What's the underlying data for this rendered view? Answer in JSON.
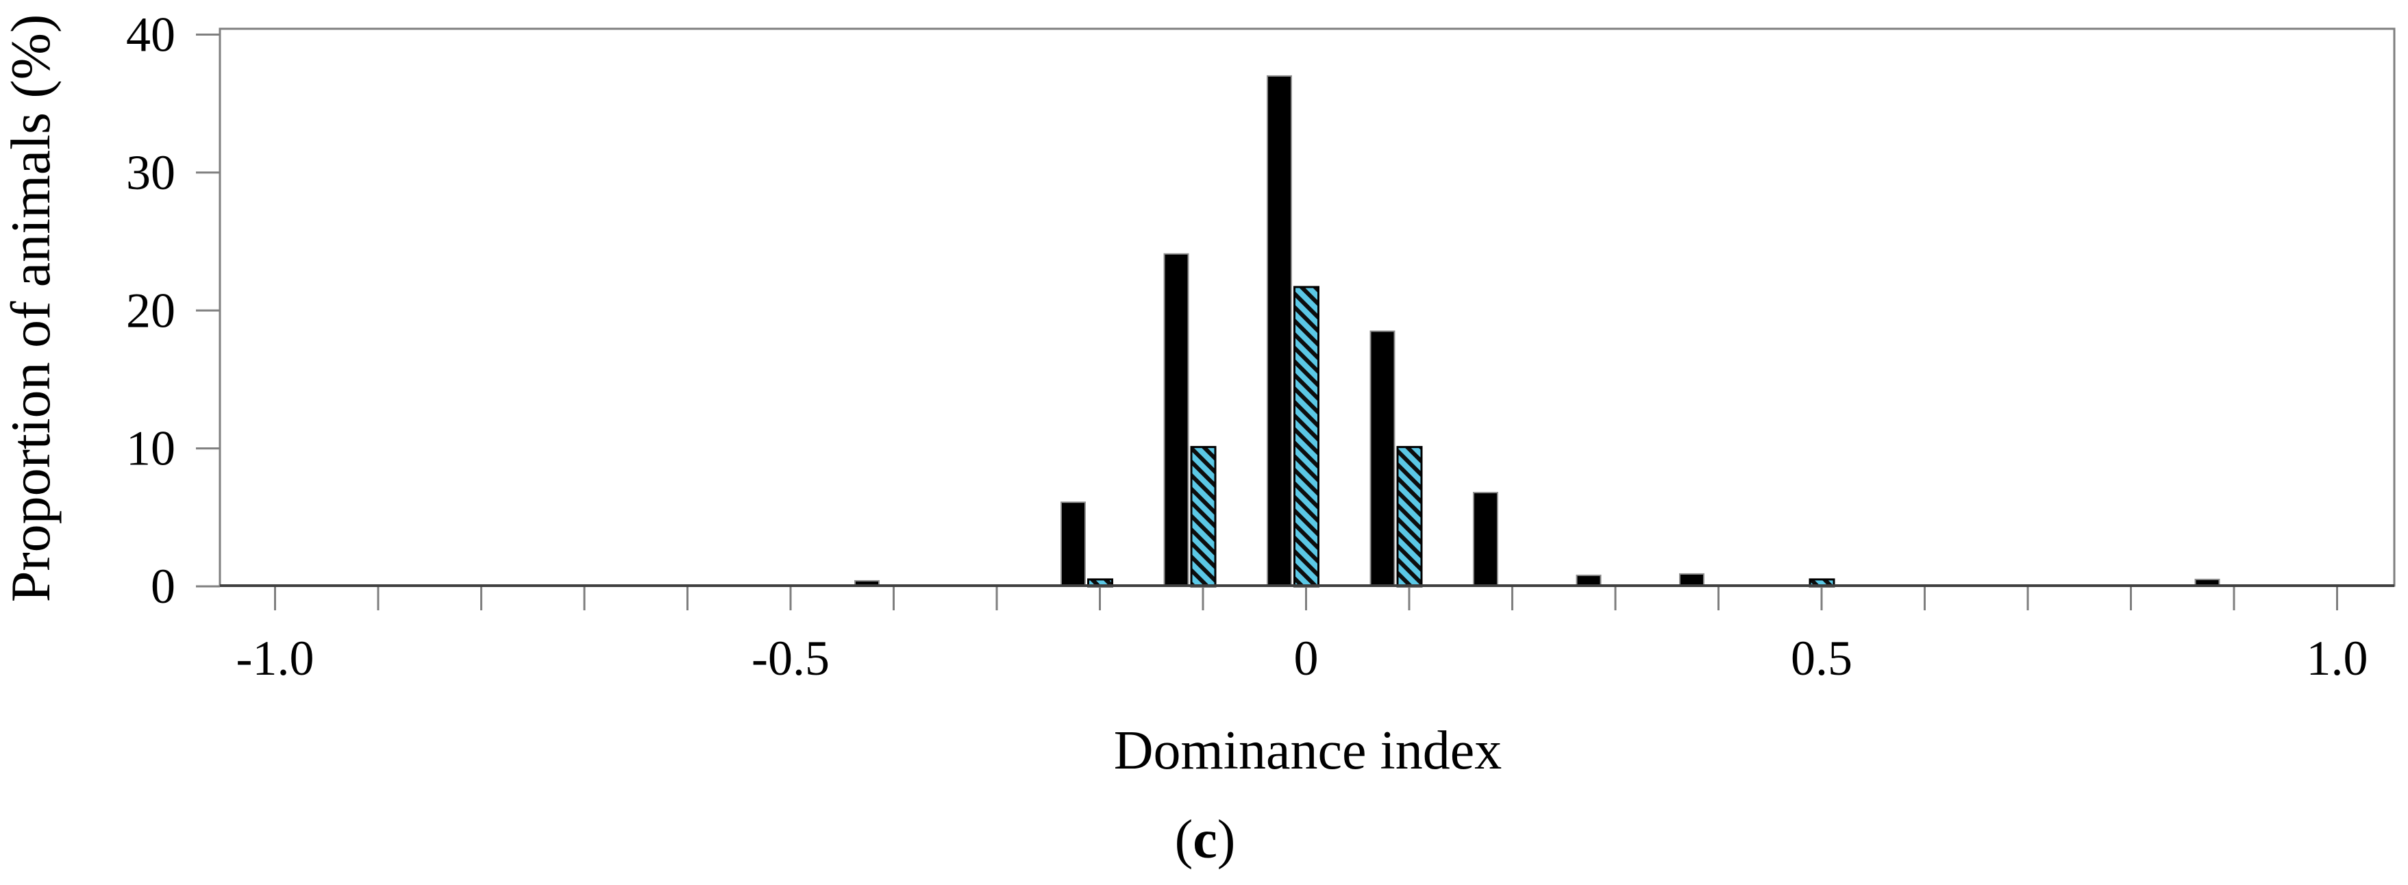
{
  "figure": {
    "caption": {
      "open": "(",
      "letter": "c",
      "close": ")"
    }
  },
  "colors": {
    "background": "#ffffff",
    "frame": "#7f7f7f",
    "axis_bottom": "#404040",
    "tick": "#7f7f7f",
    "text": "#000000",
    "bar_solid": "#000000",
    "bar_solid_outline": "#909090",
    "hatch_fill": "#5bc8e6",
    "hatch_stripe": "#0d0d0d",
    "hatch_outline": "#000000"
  },
  "chart_data": {
    "type": "bar",
    "title": "",
    "xlabel": "Dominance index",
    "ylabel": "Proportion of animals (%)",
    "caption": "(c)",
    "grid": false,
    "legend": "none",
    "xlim": [
      -1.05,
      1.06
    ],
    "ylim": [
      0,
      40
    ],
    "y_ticks": [
      0,
      10,
      20,
      30,
      40
    ],
    "x_minor_tick_step": 0.1,
    "x_minor_tick_range": [
      -1.0,
      1.0
    ],
    "x_labeled_ticks": [
      {
        "value": -1.0,
        "label": "-1.0"
      },
      {
        "value": -0.5,
        "label": "-0.5"
      },
      {
        "value": 0.0,
        "label": "0"
      },
      {
        "value": 0.5,
        "label": "0.5"
      },
      {
        "value": 1.0,
        "label": "1.0"
      }
    ],
    "bin_width": 0.1,
    "series": [
      {
        "name": "solid black bars",
        "pattern": "solid",
        "points": [
          {
            "x": -0.4,
            "y": 0.4
          },
          {
            "x": -0.2,
            "y": 6.1
          },
          {
            "x": -0.1,
            "y": 24.1
          },
          {
            "x": 0.0,
            "y": 37.0
          },
          {
            "x": 0.1,
            "y": 18.5
          },
          {
            "x": 0.2,
            "y": 6.8
          },
          {
            "x": 0.3,
            "y": 0.8
          },
          {
            "x": 0.4,
            "y": 0.9
          },
          {
            "x": 0.9,
            "y": 0.5
          }
        ]
      },
      {
        "name": "hatched cyan bars",
        "pattern": "diagonal-hatch",
        "points": [
          {
            "x": -0.2,
            "y": 0.5
          },
          {
            "x": -0.1,
            "y": 10.1
          },
          {
            "x": 0.0,
            "y": 21.7
          },
          {
            "x": 0.1,
            "y": 10.1
          },
          {
            "x": 0.5,
            "y": 0.5
          }
        ]
      }
    ]
  }
}
